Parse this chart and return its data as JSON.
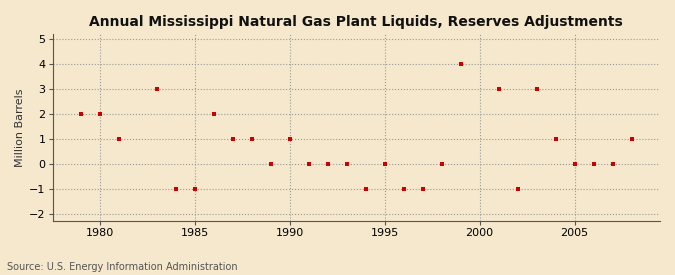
{
  "title": "Annual Mississippi Natural Gas Plant Liquids, Reserves Adjustments",
  "ylabel": "Million Barrels",
  "source": "Source: U.S. Energy Information Administration",
  "background_color": "#f5e8cc",
  "plot_background": "#f5e8cc",
  "marker_color": "#cc0000",
  "xlim": [
    1977.5,
    2009.5
  ],
  "ylim": [
    -2.3,
    5.2
  ],
  "yticks": [
    -2,
    -1,
    0,
    1,
    2,
    3,
    4,
    5
  ],
  "xticks": [
    1980,
    1985,
    1990,
    1995,
    2000,
    2005
  ],
  "years": [
    1979,
    1980,
    1981,
    1983,
    1984,
    1985,
    1986,
    1987,
    1988,
    1989,
    1990,
    1991,
    1992,
    1993,
    1994,
    1995,
    1996,
    1997,
    1998,
    1999,
    2001,
    2002,
    2003,
    2004,
    2005,
    2006,
    2007,
    2008
  ],
  "values": [
    2,
    2,
    1,
    3,
    -1,
    -1,
    2,
    1,
    1,
    0,
    1,
    0,
    0,
    0,
    -1,
    0,
    -1,
    -1,
    0,
    4,
    3,
    -1,
    3,
    1,
    0,
    0,
    0,
    1
  ]
}
